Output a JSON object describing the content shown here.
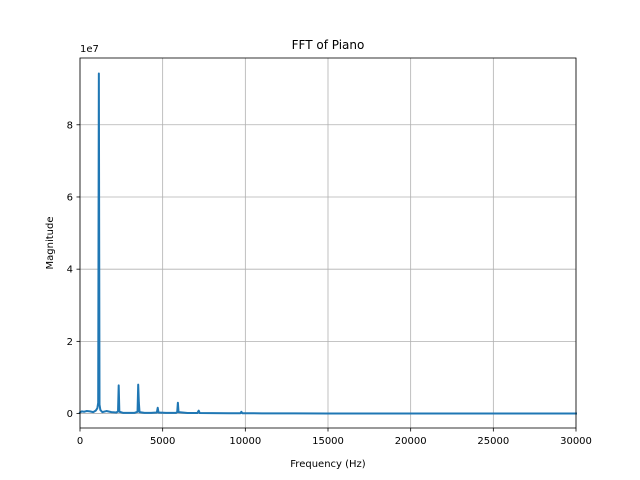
{
  "chart_data": {
    "type": "line",
    "title": "FFT of Piano",
    "xlabel": "Frequency (Hz)",
    "ylabel": "Magnitude",
    "y_scale_label": "1e7",
    "xlim": [
      0,
      30000
    ],
    "ylim": [
      -4000000,
      98500000
    ],
    "xticks": [
      0,
      5000,
      10000,
      15000,
      20000,
      25000,
      30000
    ],
    "yticks": [
      0,
      20000000,
      40000000,
      60000000,
      80000000
    ],
    "xtick_labels": [
      "0",
      "5000",
      "10000",
      "15000",
      "20000",
      "25000",
      "30000"
    ],
    "ytick_labels": [
      "0",
      "2",
      "4",
      "6",
      "8"
    ],
    "grid": true,
    "line_color": "#1f77b4",
    "series": [
      {
        "values": [
          [
            0,
            300000
          ],
          [
            100,
            600000
          ],
          [
            250,
            500000
          ],
          [
            400,
            700000
          ],
          [
            600,
            600000
          ],
          [
            800,
            400000
          ],
          [
            950,
            800000
          ],
          [
            1050,
            1500000
          ],
          [
            1100,
            3000000
          ],
          [
            1140,
            94200000
          ],
          [
            1180,
            2500000
          ],
          [
            1230,
            1000000
          ],
          [
            1350,
            400000
          ],
          [
            1600,
            700000
          ],
          [
            1900,
            400000
          ],
          [
            2200,
            300000
          ],
          [
            2300,
            600000
          ],
          [
            2340,
            7800000
          ],
          [
            2380,
            500000
          ],
          [
            2600,
            200000
          ],
          [
            3000,
            200000
          ],
          [
            3300,
            200000
          ],
          [
            3480,
            500000
          ],
          [
            3520,
            8000000
          ],
          [
            3560,
            3000000
          ],
          [
            3600,
            400000
          ],
          [
            3900,
            200000
          ],
          [
            4300,
            200000
          ],
          [
            4650,
            300000
          ],
          [
            4700,
            1600000
          ],
          [
            4750,
            300000
          ],
          [
            5200,
            200000
          ],
          [
            5800,
            200000
          ],
          [
            5880,
            400000
          ],
          [
            5920,
            3000000
          ],
          [
            5960,
            400000
          ],
          [
            6500,
            150000
          ],
          [
            7100,
            150000
          ],
          [
            7180,
            800000
          ],
          [
            7240,
            150000
          ],
          [
            8000,
            120000
          ],
          [
            9000,
            100000
          ],
          [
            9700,
            100000
          ],
          [
            9760,
            500000
          ],
          [
            9820,
            100000
          ],
          [
            11000,
            60000
          ],
          [
            13000,
            40000
          ],
          [
            15000,
            30000
          ],
          [
            18000,
            20000
          ],
          [
            21000,
            15000
          ],
          [
            24000,
            10000
          ],
          [
            27000,
            8000
          ],
          [
            30000,
            5000
          ]
        ]
      }
    ]
  }
}
